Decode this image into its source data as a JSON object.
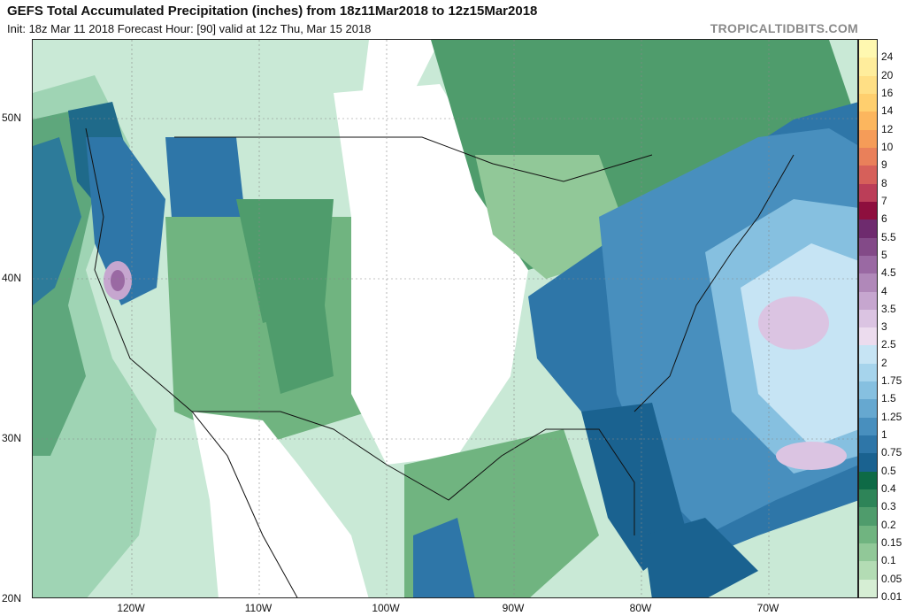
{
  "header": {
    "title": "GEFS Total Accumulated Precipitation (inches) from 18z11Mar2018 to 12z15Mar2018",
    "subtitle": "Init: 18z Mar 11 2018   Forecast Hour: [90]   valid at 12z Thu, Mar 15 2018",
    "brand": "TROPICALTIDBITS.COM"
  },
  "map": {
    "lat_labels": [
      {
        "text": "50N",
        "lat": 50
      },
      {
        "text": "40N",
        "lat": 40
      },
      {
        "text": "30N",
        "lat": 30
      },
      {
        "text": "20N",
        "lat": 20
      }
    ],
    "lon_labels": [
      {
        "text": "120W",
        "lon": -120
      },
      {
        "text": "110W",
        "lon": -110
      },
      {
        "text": "100W",
        "lon": -100
      },
      {
        "text": "90W",
        "lon": -90
      },
      {
        "text": "80W",
        "lon": -80
      },
      {
        "text": "70W",
        "lon": -70
      }
    ]
  },
  "colorbar": {
    "levels": [
      {
        "label": "24",
        "color": "#fff8b0"
      },
      {
        "label": "20",
        "color": "#ffed9c"
      },
      {
        "label": "16",
        "color": "#ffdf85"
      },
      {
        "label": "14",
        "color": "#ffcf6e"
      },
      {
        "label": "12",
        "color": "#fcb65e"
      },
      {
        "label": "10",
        "color": "#f59c58"
      },
      {
        "label": "9",
        "color": "#e9805a"
      },
      {
        "label": "8",
        "color": "#d6605a"
      },
      {
        "label": "7",
        "color": "#bb3e58"
      },
      {
        "label": "6",
        "color": "#8e0f3e"
      },
      {
        "label": "5.5",
        "color": "#6e2b6e"
      },
      {
        "label": "5",
        "color": "#834a88"
      },
      {
        "label": "4.5",
        "color": "#9a69a3"
      },
      {
        "label": "4",
        "color": "#b088b9"
      },
      {
        "label": "3.5",
        "color": "#c6a6cf"
      },
      {
        "label": "3",
        "color": "#dbc4e2"
      },
      {
        "label": "2.5",
        "color": "#ecdcee"
      },
      {
        "label": "2",
        "color": "#c6e4f4"
      },
      {
        "label": "1.75",
        "color": "#a6d4ec"
      },
      {
        "label": "1.5",
        "color": "#86c0e0"
      },
      {
        "label": "1.25",
        "color": "#66a8d0"
      },
      {
        "label": "1",
        "color": "#488fbe"
      },
      {
        "label": "0.75",
        "color": "#2e76a8"
      },
      {
        "label": "0.5",
        "color": "#1a6290"
      },
      {
        "label": "0.4",
        "color": "#0e6a46"
      },
      {
        "label": "0.3",
        "color": "#2e8458"
      },
      {
        "label": "0.2",
        "color": "#4f9c6c"
      },
      {
        "label": "0.15",
        "color": "#70b480"
      },
      {
        "label": "0.1",
        "color": "#91c898"
      },
      {
        "label": "0.05",
        "color": "#b3dcb4"
      },
      {
        "label": "0.01",
        "color": "#d6eed4"
      }
    ]
  }
}
